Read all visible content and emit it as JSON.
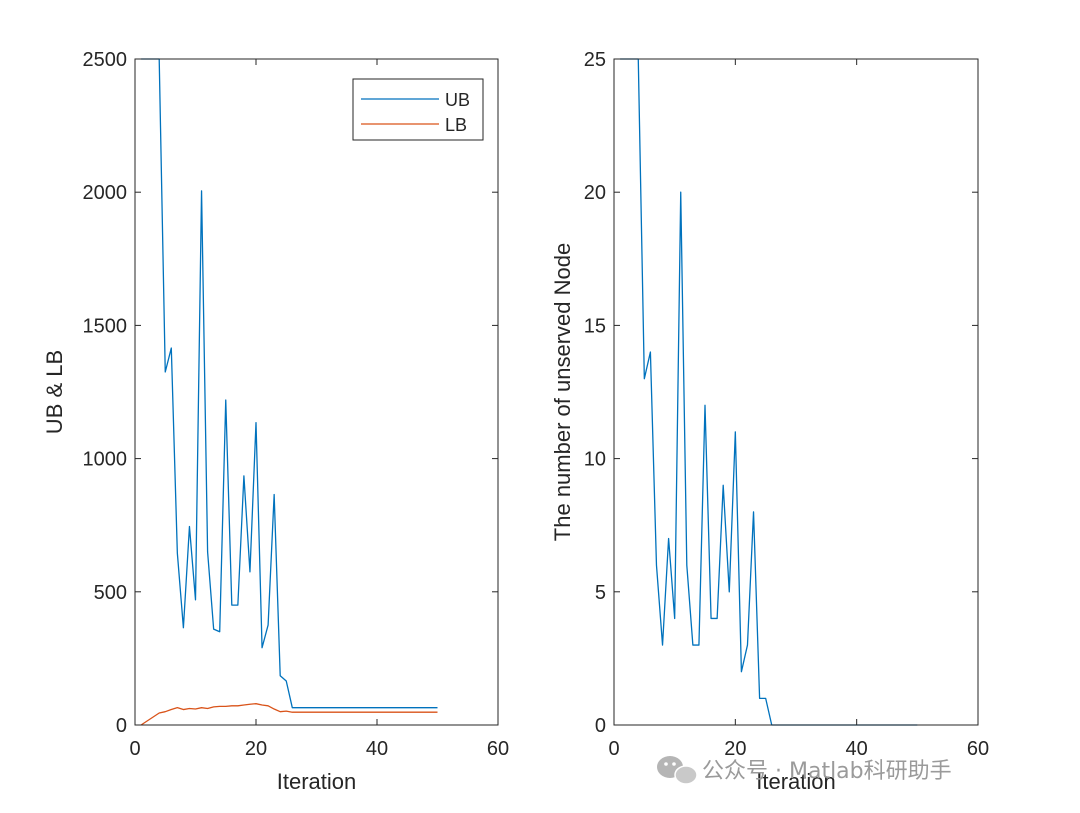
{
  "chart_data": [
    {
      "type": "line",
      "xlabel": "Iteration",
      "ylabel": "UB & LB",
      "xlim": [
        0,
        60
      ],
      "ylim": [
        0,
        2500
      ],
      "xticks": [
        "0",
        "20",
        "40",
        "60"
      ],
      "yticks": [
        "0",
        "500",
        "1000",
        "1500",
        "2000",
        "2500"
      ],
      "legend": "top-right",
      "x": [
        1,
        2,
        3,
        4,
        5,
        6,
        7,
        8,
        9,
        10,
        11,
        12,
        13,
        14,
        15,
        16,
        17,
        18,
        19,
        20,
        21,
        22,
        23,
        24,
        25,
        26,
        27,
        28,
        29,
        30,
        31,
        32,
        33,
        34,
        35,
        36,
        37,
        38,
        39,
        40,
        41,
        42,
        43,
        44,
        45,
        46,
        47,
        48,
        49,
        50
      ],
      "series": [
        {
          "name": "UB",
          "color": "#0072BD",
          "values": [
            2500,
            2500,
            2500,
            2500,
            1325,
            1415,
            645,
            365,
            745,
            470,
            2005,
            650,
            360,
            350,
            1220,
            450,
            450,
            935,
            575,
            1135,
            290,
            375,
            865,
            185,
            165,
            65,
            65,
            65,
            65,
            65,
            65,
            65,
            65,
            65,
            65,
            65,
            65,
            65,
            65,
            65,
            65,
            65,
            65,
            65,
            65,
            65,
            65,
            65,
            65,
            65
          ]
        },
        {
          "name": "LB",
          "color": "#D95319",
          "values": [
            0,
            15,
            30,
            45,
            50,
            58,
            65,
            58,
            62,
            60,
            65,
            62,
            68,
            70,
            70,
            72,
            72,
            75,
            78,
            80,
            75,
            72,
            60,
            50,
            52,
            48,
            48,
            48,
            48,
            48,
            48,
            48,
            48,
            48,
            48,
            48,
            48,
            48,
            48,
            48,
            48,
            48,
            48,
            48,
            48,
            48,
            48,
            48,
            48,
            48
          ]
        }
      ]
    },
    {
      "type": "line",
      "xlabel": "Iteration",
      "ylabel": "The number of unserved Node",
      "xlim": [
        0,
        60
      ],
      "ylim": [
        0,
        25
      ],
      "xticks": [
        "0",
        "20",
        "40",
        "60"
      ],
      "yticks": [
        "0",
        "5",
        "10",
        "15",
        "20",
        "25"
      ],
      "x": [
        1,
        2,
        3,
        4,
        5,
        6,
        7,
        8,
        9,
        10,
        11,
        12,
        13,
        14,
        15,
        16,
        17,
        18,
        19,
        20,
        21,
        22,
        23,
        24,
        25,
        26,
        27,
        28,
        29,
        30,
        31,
        32,
        33,
        34,
        35,
        36,
        37,
        38,
        39,
        40,
        41,
        42,
        43,
        44,
        45,
        46,
        47,
        48,
        49,
        50
      ],
      "series": [
        {
          "color": "#0072BD",
          "values": [
            25,
            25,
            25,
            25,
            13,
            14,
            6,
            3,
            7,
            4,
            20,
            6,
            3,
            3,
            12,
            4,
            4,
            9,
            5,
            11,
            2,
            3,
            8,
            1,
            1,
            0,
            0,
            0,
            0,
            0,
            0,
            0,
            0,
            0,
            0,
            0,
            0,
            0,
            0,
            0,
            0,
            0,
            0,
            0,
            0,
            0,
            0,
            0,
            0,
            0
          ]
        }
      ]
    }
  ],
  "watermark": "公众号 · Matlab科研助手"
}
